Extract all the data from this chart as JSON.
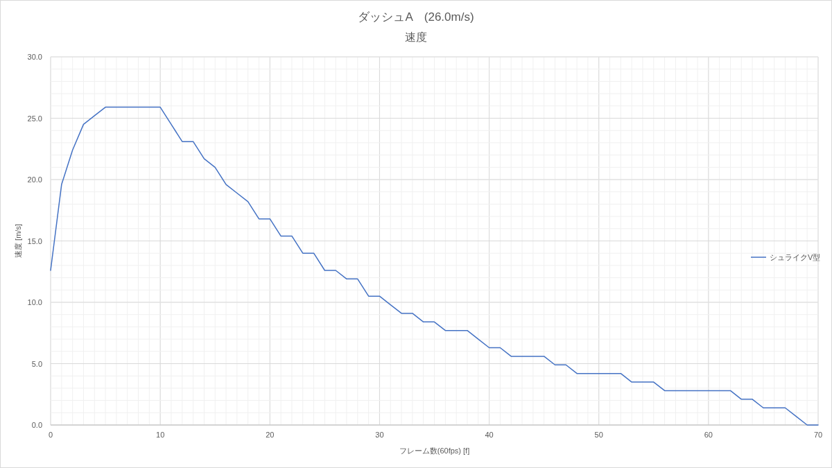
{
  "chart_data": {
    "type": "line",
    "title": "ダッシュA　(26.0m/s)",
    "subtitle": "速度",
    "xlabel": "フレーム数(60fps) [f]",
    "ylabel": "速度 [m/s]",
    "x": [
      0,
      1,
      2,
      3,
      4,
      5,
      6,
      7,
      8,
      9,
      10,
      11,
      12,
      13,
      14,
      15,
      16,
      17,
      18,
      19,
      20,
      21,
      22,
      23,
      24,
      25,
      26,
      27,
      28,
      29,
      30,
      31,
      32,
      33,
      34,
      35,
      36,
      37,
      38,
      39,
      40,
      41,
      42,
      43,
      44,
      45,
      46,
      47,
      48,
      49,
      50,
      51,
      52,
      53,
      54,
      55,
      56,
      57,
      58,
      59,
      60,
      61,
      62,
      63,
      64,
      65,
      66,
      67,
      68,
      69,
      70
    ],
    "series": [
      {
        "name": "シュライクV型",
        "color": "#4472c4",
        "values": [
          12.6,
          19.6,
          22.4,
          24.5,
          25.2,
          25.9,
          25.9,
          25.9,
          25.9,
          25.9,
          25.9,
          24.5,
          23.1,
          23.1,
          21.7,
          21.0,
          19.6,
          18.9,
          18.2,
          16.8,
          16.8,
          15.4,
          15.4,
          14.0,
          14.0,
          12.6,
          12.6,
          11.9,
          11.9,
          10.5,
          10.5,
          9.8,
          9.1,
          9.1,
          8.4,
          8.4,
          7.7,
          7.7,
          7.7,
          7.0,
          6.3,
          6.3,
          5.6,
          5.6,
          5.6,
          5.6,
          4.9,
          4.9,
          4.2,
          4.2,
          4.2,
          4.2,
          4.2,
          3.5,
          3.5,
          3.5,
          2.8,
          2.8,
          2.8,
          2.8,
          2.8,
          2.8,
          2.8,
          2.1,
          2.1,
          1.4,
          1.4,
          1.4,
          0.7,
          0,
          0
        ]
      }
    ],
    "xlim": [
      0,
      70
    ],
    "ylim": [
      0,
      30
    ],
    "xticks": [
      0,
      10,
      20,
      30,
      40,
      50,
      60,
      70
    ],
    "yticks": [
      {
        "value": 0,
        "label": "0.0"
      },
      {
        "value": 5,
        "label": "5.0"
      },
      {
        "value": 10,
        "label": "10.0"
      },
      {
        "value": 15,
        "label": "15.0"
      },
      {
        "value": 20,
        "label": "20.0"
      },
      {
        "value": 25,
        "label": "25.0"
      },
      {
        "value": 30,
        "label": "30.0"
      }
    ],
    "grid": true,
    "legend": "right",
    "marker": "none",
    "line_style": "solid"
  }
}
